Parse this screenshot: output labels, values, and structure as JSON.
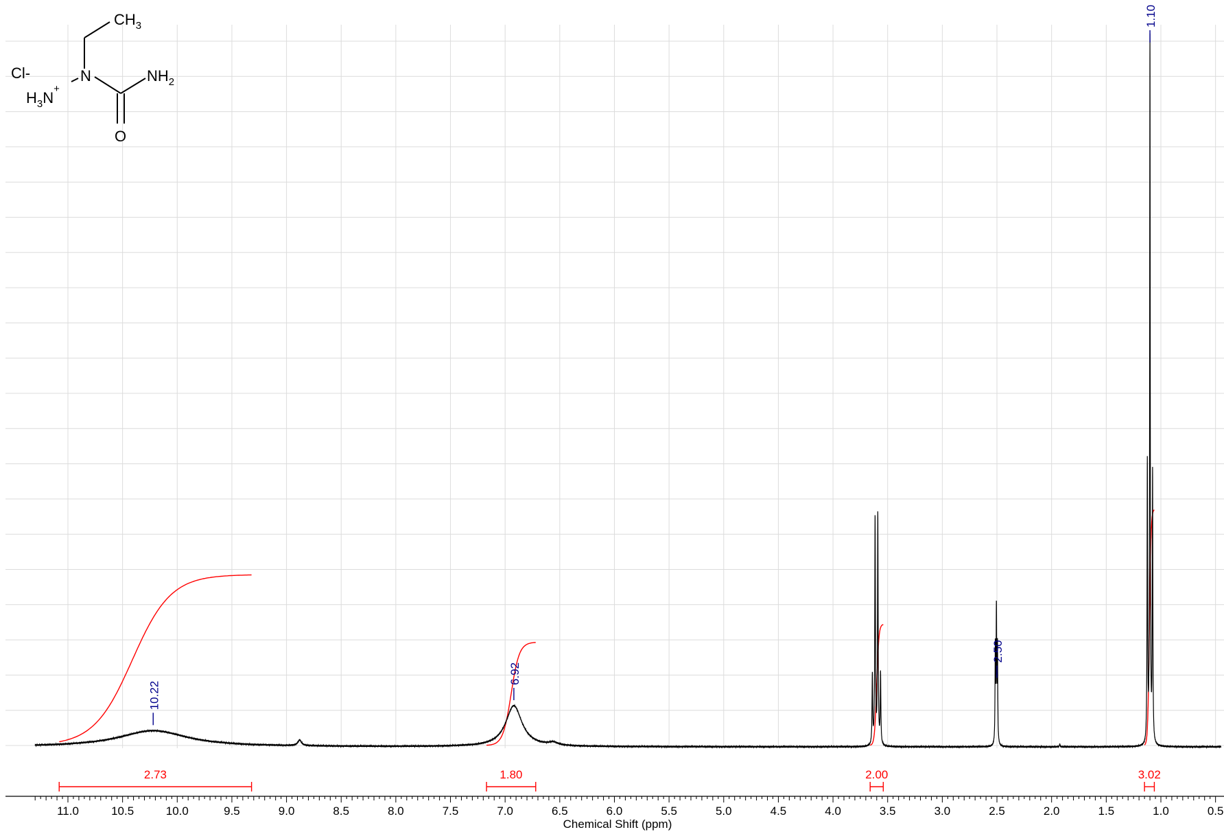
{
  "chart_data": {
    "type": "line",
    "title": "",
    "xlabel": "Chemical Shift (ppm)",
    "ylabel": "",
    "xlim": [
      11.3,
      0.45
    ],
    "x_reversed": true,
    "grid": true,
    "x_ticks": [
      "11.0",
      "10.5",
      "10.0",
      "9.5",
      "9.0",
      "8.5",
      "8.0",
      "7.5",
      "7.0",
      "6.5",
      "6.0",
      "5.5",
      "5.0",
      "4.5",
      "4.0",
      "3.5",
      "3.0",
      "2.5",
      "2.0",
      "1.5",
      "1.0",
      "0.5"
    ],
    "peak_labels": [
      "10.22",
      "6.92",
      "2.50",
      "1.10"
    ],
    "peaks": [
      {
        "shift": 10.22,
        "shape": "broad",
        "height": 0.023,
        "width": 0.38
      },
      {
        "shift": 8.88,
        "shape": "sharp",
        "height": 0.008,
        "width": 0.02
      },
      {
        "shift": 6.92,
        "shape": "broad",
        "height": 0.058,
        "width": 0.09
      },
      {
        "shift": 6.56,
        "shape": "sharp",
        "height": 0.004,
        "width": 0.05
      },
      {
        "shift": 3.64,
        "shape": "sharp",
        "height": 0.098,
        "width": 0.0035
      },
      {
        "shift": 3.615,
        "shape": "sharp",
        "height": 0.32,
        "width": 0.0035
      },
      {
        "shift": 3.59,
        "shape": "sharp",
        "height": 0.325,
        "width": 0.0035
      },
      {
        "shift": 3.565,
        "shape": "sharp",
        "height": 0.1,
        "width": 0.0035
      },
      {
        "shift": 2.515,
        "shape": "sharp",
        "height": 0.135,
        "width": 0.003
      },
      {
        "shift": 2.505,
        "shape": "sharp",
        "height": 0.185,
        "width": 0.003
      },
      {
        "shift": 2.495,
        "shape": "sharp",
        "height": 0.135,
        "width": 0.003
      },
      {
        "shift": 1.925,
        "shape": "sharp",
        "height": 0.004,
        "width": 0.004
      },
      {
        "shift": 1.124,
        "shape": "sharp",
        "height": 0.395,
        "width": 0.003
      },
      {
        "shift": 1.1,
        "shape": "sharp",
        "height": 1.0,
        "width": 0.003
      },
      {
        "shift": 1.076,
        "shape": "sharp",
        "height": 0.38,
        "width": 0.003
      }
    ],
    "integrals": [
      {
        "from": 11.08,
        "to": 9.32,
        "value": "2.73"
      },
      {
        "from": 7.17,
        "to": 6.72,
        "value": "1.80"
      },
      {
        "from": 3.66,
        "to": 3.54,
        "value": "2.00"
      },
      {
        "from": 1.15,
        "to": 1.06,
        "value": "3.02"
      }
    ],
    "colors": {
      "spectrum": "#000000",
      "integral": "#ff0000",
      "peak_label": "#00008b",
      "grid": "#dcdcdc"
    }
  },
  "structure": {
    "counter_ion": "Cl-",
    "atoms": {
      "ch3": "CH3",
      "n": "N",
      "h3n": "H3N+",
      "nh2": "NH2",
      "o": "O"
    }
  }
}
